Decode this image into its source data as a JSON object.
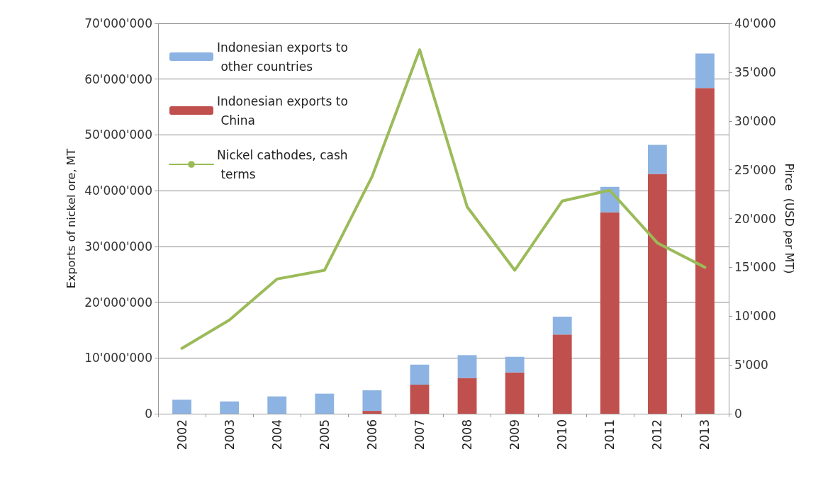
{
  "chart_data": {
    "type": "bar",
    "stacked": true,
    "categories": [
      "2002",
      "2003",
      "2004",
      "2005",
      "2006",
      "2007",
      "2008",
      "2009",
      "2010",
      "2011",
      "2012",
      "2013"
    ],
    "ylabel": "Exports of nickel ore, MT",
    "y2label": "Pirce  (USD per MT)",
    "series": [
      {
        "name": "Indonesian exports to China",
        "color": "#c0504d",
        "values": [
          0,
          0,
          0,
          0,
          500000,
          5200000,
          6400000,
          7400000,
          14200000,
          36100000,
          43000000,
          58400000
        ]
      },
      {
        "name": "Indonesian exports to other countries",
        "color": "#8db3e2",
        "values": [
          2500000,
          2200000,
          3100000,
          3600000,
          3700000,
          3600000,
          4100000,
          2800000,
          3200000,
          4600000,
          5200000,
          6200000
        ]
      },
      {
        "name": "Nickel cathodes, cash terms",
        "type": "line",
        "axis": "y2",
        "color": "#9bbb59",
        "values": [
          6700,
          9600,
          13800,
          14700,
          24300,
          37300,
          21200,
          14700,
          21800,
          22900,
          17500,
          15000
        ]
      }
    ],
    "ylim": [
      0,
      70000000
    ],
    "yticks": [
      {
        "value": 0,
        "label": "0"
      },
      {
        "value": 10000000,
        "label": "10'000'000"
      },
      {
        "value": 20000000,
        "label": "20'000'000"
      },
      {
        "value": 30000000,
        "label": "30'000'000"
      },
      {
        "value": 40000000,
        "label": "40'000'000"
      },
      {
        "value": 50000000,
        "label": "50'000'000"
      },
      {
        "value": 60000000,
        "label": "60'000'000"
      },
      {
        "value": 70000000,
        "label": "70'000'000"
      }
    ],
    "y2lim": [
      0,
      40000
    ],
    "y2ticks": [
      {
        "value": 0,
        "label": "0"
      },
      {
        "value": 5000,
        "label": "5'000"
      },
      {
        "value": 10000,
        "label": "10'000"
      },
      {
        "value": 15000,
        "label": "15'000"
      },
      {
        "value": 20000,
        "label": "20'000"
      },
      {
        "value": 25000,
        "label": "25'000"
      },
      {
        "value": 30000,
        "label": "30'000"
      },
      {
        "value": 35000,
        "label": "35'000"
      },
      {
        "value": 40000,
        "label": "40'000"
      }
    ],
    "grid": "y",
    "legend": "top left",
    "marker": "none",
    "line_style": "solid"
  }
}
